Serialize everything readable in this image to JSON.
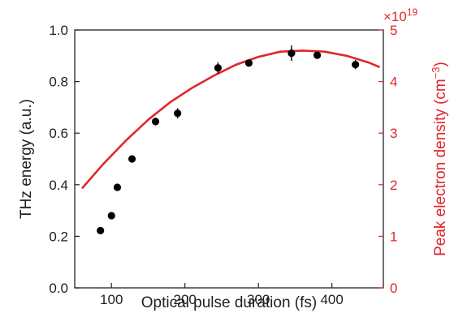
{
  "chart_data": {
    "type": "scatter",
    "xlabel": "Optical pulse duration (fs)",
    "ylabel_left": "THz energy (a.u.)",
    "ylabel_right_main": "Peak electron density (cm",
    "ylabel_right_sup": "−3",
    "ylabel_right_close": ")",
    "right_multiplier_base": "×10",
    "right_multiplier_exp": "19",
    "xlim": [
      50,
      470
    ],
    "ylim_left": [
      0,
      1
    ],
    "ylim_right": [
      0,
      5
    ],
    "x_ticks": [
      100,
      200,
      300,
      400
    ],
    "x_tick_labels": [
      "100",
      "200",
      "300",
      "400"
    ],
    "y_left_ticks": [
      0,
      0.2,
      0.4,
      0.6,
      0.8,
      1.0
    ],
    "y_left_tick_labels": [
      "0.0",
      "0.2",
      "0.4",
      "0.6",
      "0.8",
      "1.0"
    ],
    "y_right_ticks": [
      0,
      1,
      2,
      3,
      4,
      5
    ],
    "y_right_tick_labels": [
      "0",
      "1",
      "2",
      "3",
      "4",
      "5"
    ],
    "series": [
      {
        "axis": "left",
        "style": "points-with-errorbars",
        "color": "#000000",
        "x": [
          85,
          100,
          108,
          128,
          160,
          190,
          245,
          287,
          345,
          380,
          432
        ],
        "y": [
          0.222,
          0.28,
          0.39,
          0.5,
          0.645,
          0.677,
          0.853,
          0.872,
          0.91,
          0.902,
          0.866
        ],
        "err": [
          0.01,
          0.01,
          0.01,
          0.01,
          0.015,
          0.02,
          0.022,
          0.012,
          0.03,
          0.012,
          0.018
        ]
      },
      {
        "axis": "right",
        "style": "line",
        "color": "#e0262a",
        "x": [
          60,
          90,
          120,
          150,
          180,
          210,
          240,
          270,
          300,
          330,
          360,
          390,
          420,
          450,
          465
        ],
        "y": [
          1.93,
          2.42,
          2.86,
          3.26,
          3.6,
          3.88,
          4.12,
          4.33,
          4.48,
          4.58,
          4.6,
          4.58,
          4.5,
          4.37,
          4.28
        ]
      }
    ]
  }
}
